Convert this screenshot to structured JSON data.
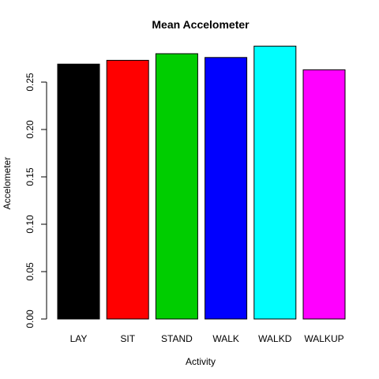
{
  "chart_data": {
    "type": "bar",
    "title": "Mean Accelometer",
    "xlabel": "Activity",
    "ylabel": "Accelometer",
    "categories": [
      "LAY",
      "SIT",
      "STAND",
      "WALK",
      "WALKD",
      "WALKUP"
    ],
    "values": [
      0.269,
      0.273,
      0.28,
      0.276,
      0.288,
      0.263
    ],
    "colors": [
      "#000000",
      "#ff0000",
      "#00cd00",
      "#0000ff",
      "#00ffff",
      "#ff00ff"
    ],
    "ylim": [
      0,
      0.29
    ],
    "yticks": [
      0.0,
      0.05,
      0.1,
      0.15,
      0.2,
      0.25
    ],
    "ytick_labels": [
      "0.00",
      "0.05",
      "0.10",
      "0.15",
      "0.20",
      "0.25"
    ],
    "grid": false,
    "legend": "none"
  }
}
